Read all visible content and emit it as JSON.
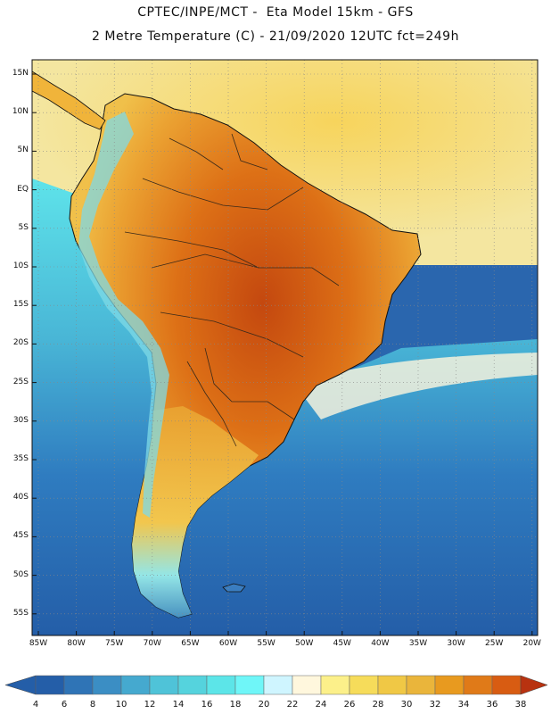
{
  "header": {
    "title_line1": "CPTEC/INPE/MCT -  Eta Model 15km - GFS",
    "title_line2": "2 Metre Temperature (C) - 21/09/2020 12UTC fct=249h"
  },
  "map": {
    "region": "South America",
    "lat_labels": [
      "15N",
      "10N",
      "5N",
      "EQ",
      "5S",
      "10S",
      "15S",
      "20S",
      "25S",
      "30S",
      "35S",
      "40S",
      "45S",
      "50S",
      "55S"
    ],
    "lon_labels": [
      "85W",
      "80W",
      "75W",
      "70W",
      "65W",
      "60W",
      "55W",
      "50W",
      "45W",
      "40W",
      "35W",
      "30W",
      "25W",
      "20W"
    ],
    "colors": {
      "land_outline": "#111111",
      "border_line": "#3a2a1a",
      "grid_line": "#888888"
    }
  },
  "colorbar": {
    "labels": [
      "4",
      "6",
      "8",
      "10",
      "12",
      "14",
      "16",
      "18",
      "20",
      "22",
      "24",
      "26",
      "28",
      "30",
      "32",
      "34",
      "36",
      "38"
    ],
    "colors": [
      "#245ea8",
      "#2f74b6",
      "#3b8ec4",
      "#45a9cf",
      "#4fc3d8",
      "#55d3dd",
      "#5ce5e8",
      "#6ff6f8",
      "#cff5ff",
      "#fff7dd",
      "#fcf08a",
      "#f6dc5a",
      "#f0c845",
      "#eab53b",
      "#e89a1f",
      "#e07a18",
      "#d85c12",
      "#c43a0c",
      "#b83210"
    ]
  }
}
